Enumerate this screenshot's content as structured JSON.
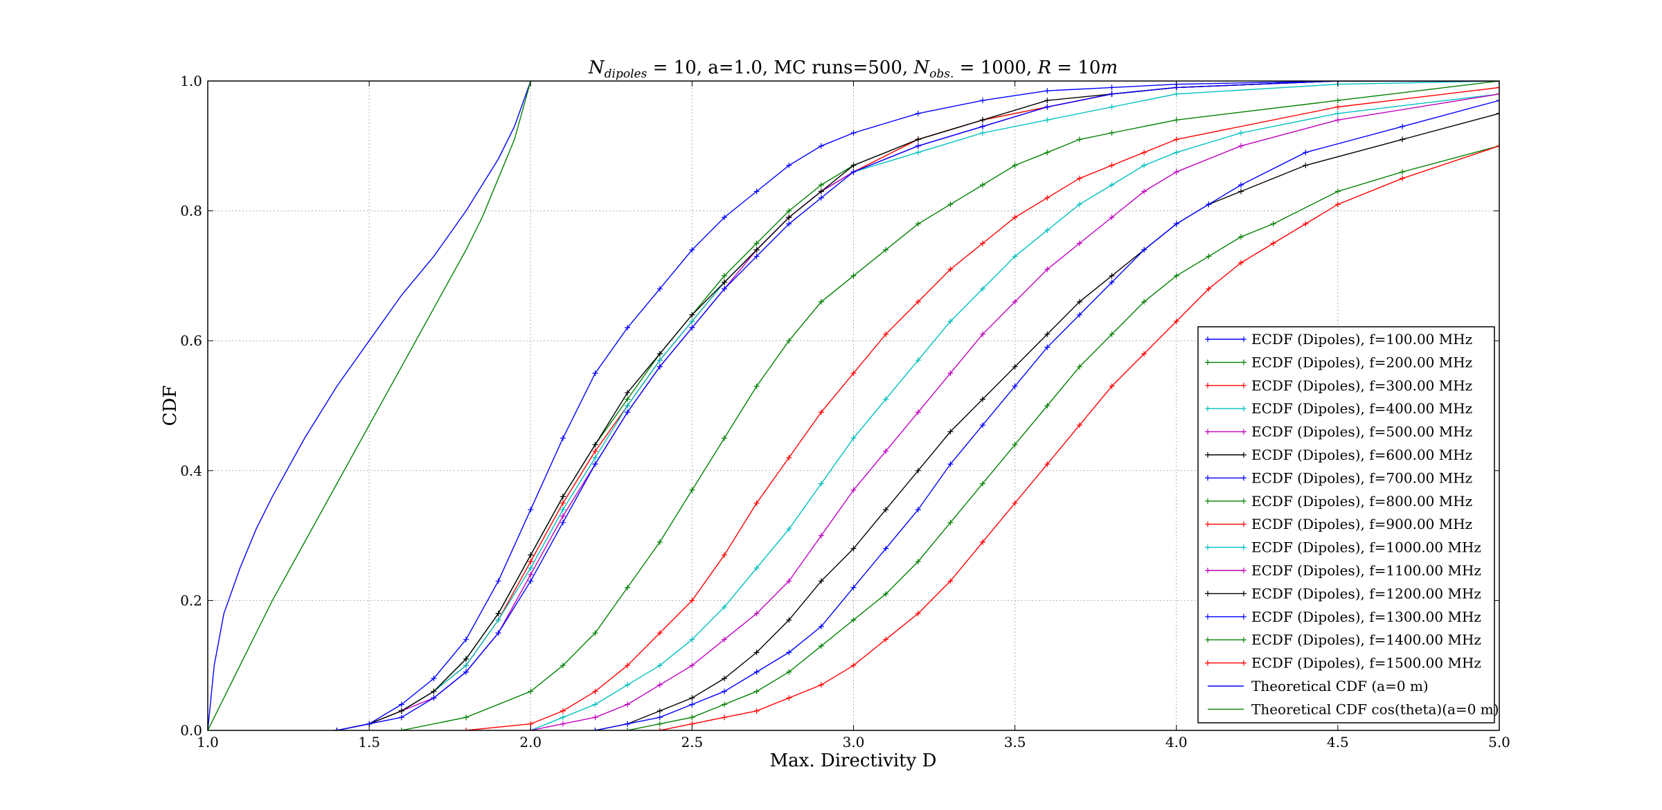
{
  "chart_data": {
    "type": "line",
    "title": "N_dipoles = 10, a=1.0, MC runs=500, N_obs. = 1000, R = 10m",
    "title_parts": {
      "n": "N",
      "n_sub": "dipoles",
      "eq1": " = 10, a=1.0, MC runs=500, ",
      "nobs": "N",
      "nobs_sub": "obs.",
      "eq2": " = 1000, ",
      "r": "R",
      "eq3": " = 10",
      "m": "m"
    },
    "xlabel": "Max. Directivity D",
    "ylabel": "CDF",
    "xlim": [
      1.0,
      5.0
    ],
    "ylim": [
      0.0,
      1.0
    ],
    "xticks": [
      "1.0",
      "1.5",
      "2.0",
      "2.5",
      "3.0",
      "3.5",
      "4.0",
      "4.5",
      "5.0"
    ],
    "yticks": [
      "0.0",
      "0.2",
      "0.4",
      "0.6",
      "0.8",
      "1.0"
    ],
    "grid": true,
    "legend_position": "lower-right",
    "series": [
      {
        "name": "ECDF (Dipoles), f=100.00 MHz",
        "color": "#0000ff",
        "marker": "+",
        "x": [
          1.4,
          1.5,
          1.6,
          1.7,
          1.8,
          1.9,
          2.0,
          2.1,
          2.2,
          2.3,
          2.4,
          2.5,
          2.6,
          2.7,
          2.8,
          2.9,
          3.0,
          3.2,
          3.4,
          3.6,
          3.8,
          4.0,
          4.5,
          5.0
        ],
        "y": [
          0.0,
          0.01,
          0.04,
          0.08,
          0.14,
          0.23,
          0.34,
          0.45,
          0.55,
          0.62,
          0.68,
          0.74,
          0.79,
          0.83,
          0.87,
          0.9,
          0.92,
          0.95,
          0.97,
          0.985,
          0.99,
          0.995,
          1.0,
          1.0
        ]
      },
      {
        "name": "ECDF (Dipoles), f=200.00 MHz",
        "color": "#008000",
        "marker": "+",
        "x": [
          1.4,
          1.5,
          1.6,
          1.7,
          1.8,
          1.9,
          2.0,
          2.1,
          2.2,
          2.3,
          2.4,
          2.5,
          2.6,
          2.7,
          2.8,
          2.9,
          3.0,
          3.2,
          3.4,
          3.6,
          3.8,
          4.0,
          4.5,
          5.0
        ],
        "y": [
          0.0,
          0.01,
          0.03,
          0.06,
          0.11,
          0.18,
          0.27,
          0.36,
          0.44,
          0.51,
          0.58,
          0.64,
          0.7,
          0.75,
          0.8,
          0.84,
          0.87,
          0.91,
          0.94,
          0.96,
          0.98,
          0.99,
          1.0,
          1.0
        ]
      },
      {
        "name": "ECDF (Dipoles), f=300.00 MHz",
        "color": "#ff0000",
        "marker": "+",
        "x": [
          1.4,
          1.5,
          1.6,
          1.7,
          1.8,
          1.9,
          2.0,
          2.1,
          2.2,
          2.3,
          2.4,
          2.5,
          2.6,
          2.7,
          2.8,
          2.9,
          3.0,
          3.2,
          3.4,
          3.6,
          3.8,
          4.0,
          4.5,
          5.0
        ],
        "y": [
          0.0,
          0.01,
          0.03,
          0.06,
          0.1,
          0.17,
          0.26,
          0.35,
          0.43,
          0.5,
          0.57,
          0.63,
          0.69,
          0.74,
          0.79,
          0.83,
          0.86,
          0.91,
          0.94,
          0.96,
          0.98,
          0.99,
          1.0,
          1.0
        ]
      },
      {
        "name": "ECDF (Dipoles), f=400.00 MHz",
        "color": "#00bfbf",
        "marker": "+",
        "x": [
          1.4,
          1.5,
          1.6,
          1.7,
          1.8,
          1.9,
          2.0,
          2.1,
          2.2,
          2.3,
          2.4,
          2.5,
          2.6,
          2.7,
          2.8,
          2.9,
          3.0,
          3.2,
          3.4,
          3.6,
          3.8,
          4.0,
          4.5,
          5.0
        ],
        "y": [
          0.0,
          0.01,
          0.03,
          0.06,
          0.1,
          0.17,
          0.25,
          0.34,
          0.42,
          0.5,
          0.57,
          0.63,
          0.69,
          0.74,
          0.79,
          0.83,
          0.86,
          0.89,
          0.92,
          0.94,
          0.96,
          0.98,
          0.995,
          1.0
        ]
      },
      {
        "name": "ECDF (Dipoles), f=500.00 MHz",
        "color": "#bf00bf",
        "marker": "+",
        "x": [
          1.4,
          1.5,
          1.6,
          1.7,
          1.8,
          1.9,
          2.0,
          2.1,
          2.2,
          2.3,
          2.4,
          2.5,
          2.6,
          2.7,
          2.8,
          2.9,
          3.0,
          3.2,
          3.4,
          3.6,
          3.8,
          4.0,
          4.5,
          5.0
        ],
        "y": [
          0.0,
          0.01,
          0.03,
          0.05,
          0.09,
          0.15,
          0.24,
          0.33,
          0.41,
          0.49,
          0.56,
          0.62,
          0.68,
          0.74,
          0.79,
          0.83,
          0.86,
          0.9,
          0.93,
          0.96,
          0.98,
          0.99,
          1.0,
          1.0
        ]
      },
      {
        "name": "ECDF (Dipoles), f=600.00 MHz",
        "color": "#000000",
        "marker": "+",
        "x": [
          1.4,
          1.5,
          1.6,
          1.7,
          1.8,
          1.9,
          2.0,
          2.1,
          2.2,
          2.3,
          2.4,
          2.5,
          2.6,
          2.7,
          2.8,
          2.9,
          3.0,
          3.2,
          3.4,
          3.6,
          3.8,
          4.0,
          4.5,
          5.0
        ],
        "y": [
          0.0,
          0.01,
          0.03,
          0.06,
          0.11,
          0.18,
          0.27,
          0.36,
          0.44,
          0.52,
          0.58,
          0.64,
          0.69,
          0.74,
          0.79,
          0.83,
          0.87,
          0.91,
          0.94,
          0.97,
          0.98,
          0.99,
          1.0,
          1.0
        ]
      },
      {
        "name": "ECDF (Dipoles), f=700.00 MHz",
        "color": "#0000ff",
        "marker": "+",
        "x": [
          1.4,
          1.5,
          1.6,
          1.7,
          1.8,
          1.9,
          2.0,
          2.1,
          2.2,
          2.3,
          2.4,
          2.5,
          2.6,
          2.7,
          2.8,
          2.9,
          3.0,
          3.2,
          3.4,
          3.6,
          3.8,
          4.0,
          4.5,
          5.0
        ],
        "y": [
          0.0,
          0.01,
          0.02,
          0.05,
          0.09,
          0.15,
          0.23,
          0.32,
          0.41,
          0.49,
          0.56,
          0.62,
          0.68,
          0.73,
          0.78,
          0.82,
          0.86,
          0.9,
          0.93,
          0.96,
          0.98,
          0.99,
          1.0,
          1.0
        ]
      },
      {
        "name": "ECDF (Dipoles), f=800.00 MHz",
        "color": "#008000",
        "marker": "+",
        "x": [
          1.6,
          1.8,
          2.0,
          2.1,
          2.2,
          2.3,
          2.4,
          2.5,
          2.6,
          2.7,
          2.8,
          2.9,
          3.0,
          3.1,
          3.2,
          3.3,
          3.4,
          3.5,
          3.6,
          3.7,
          3.8,
          4.0,
          4.5,
          5.0
        ],
        "y": [
          0.0,
          0.02,
          0.06,
          0.1,
          0.15,
          0.22,
          0.29,
          0.37,
          0.45,
          0.53,
          0.6,
          0.66,
          0.7,
          0.74,
          0.78,
          0.81,
          0.84,
          0.87,
          0.89,
          0.91,
          0.92,
          0.94,
          0.97,
          1.0
        ]
      },
      {
        "name": "ECDF (Dipoles), f=900.00 MHz",
        "color": "#ff0000",
        "marker": "+",
        "x": [
          1.8,
          2.0,
          2.1,
          2.2,
          2.3,
          2.4,
          2.5,
          2.6,
          2.7,
          2.8,
          2.9,
          3.0,
          3.1,
          3.2,
          3.3,
          3.4,
          3.5,
          3.6,
          3.7,
          3.8,
          3.9,
          4.0,
          4.5,
          5.0
        ],
        "y": [
          0.0,
          0.01,
          0.03,
          0.06,
          0.1,
          0.15,
          0.2,
          0.27,
          0.35,
          0.42,
          0.49,
          0.55,
          0.61,
          0.66,
          0.71,
          0.75,
          0.79,
          0.82,
          0.85,
          0.87,
          0.89,
          0.91,
          0.96,
          0.99
        ]
      },
      {
        "name": "ECDF (Dipoles), f=1000.00 MHz",
        "color": "#00bfbf",
        "marker": "+",
        "x": [
          2.0,
          2.1,
          2.2,
          2.3,
          2.4,
          2.5,
          2.6,
          2.7,
          2.8,
          2.9,
          3.0,
          3.1,
          3.2,
          3.3,
          3.4,
          3.5,
          3.6,
          3.7,
          3.8,
          3.9,
          4.0,
          4.2,
          4.5,
          5.0
        ],
        "y": [
          0.0,
          0.02,
          0.04,
          0.07,
          0.1,
          0.14,
          0.19,
          0.25,
          0.31,
          0.38,
          0.45,
          0.51,
          0.57,
          0.63,
          0.68,
          0.73,
          0.77,
          0.81,
          0.84,
          0.87,
          0.89,
          0.92,
          0.95,
          0.98
        ]
      },
      {
        "name": "ECDF (Dipoles), f=1100.00 MHz",
        "color": "#bf00bf",
        "marker": "+",
        "x": [
          2.0,
          2.1,
          2.2,
          2.3,
          2.4,
          2.5,
          2.6,
          2.7,
          2.8,
          2.9,
          3.0,
          3.1,
          3.2,
          3.3,
          3.4,
          3.5,
          3.6,
          3.7,
          3.8,
          3.9,
          4.0,
          4.2,
          4.5,
          5.0
        ],
        "y": [
          0.0,
          0.01,
          0.02,
          0.04,
          0.07,
          0.1,
          0.14,
          0.18,
          0.23,
          0.3,
          0.37,
          0.43,
          0.49,
          0.55,
          0.61,
          0.66,
          0.71,
          0.75,
          0.79,
          0.83,
          0.86,
          0.9,
          0.94,
          0.98
        ]
      },
      {
        "name": "ECDF (Dipoles), f=1200.00 MHz",
        "color": "#000000",
        "marker": "+",
        "x": [
          2.2,
          2.3,
          2.4,
          2.5,
          2.6,
          2.7,
          2.8,
          2.9,
          3.0,
          3.1,
          3.2,
          3.3,
          3.4,
          3.5,
          3.6,
          3.7,
          3.8,
          3.9,
          4.0,
          4.1,
          4.2,
          4.4,
          4.7,
          5.0
        ],
        "y": [
          0.0,
          0.01,
          0.03,
          0.05,
          0.08,
          0.12,
          0.17,
          0.23,
          0.28,
          0.34,
          0.4,
          0.46,
          0.51,
          0.56,
          0.61,
          0.66,
          0.7,
          0.74,
          0.78,
          0.81,
          0.83,
          0.87,
          0.91,
          0.95
        ]
      },
      {
        "name": "ECDF (Dipoles), f=1300.00 MHz",
        "color": "#0000ff",
        "marker": "+",
        "x": [
          2.2,
          2.3,
          2.4,
          2.5,
          2.6,
          2.7,
          2.8,
          2.9,
          3.0,
          3.1,
          3.2,
          3.3,
          3.4,
          3.5,
          3.6,
          3.7,
          3.8,
          3.9,
          4.0,
          4.1,
          4.2,
          4.4,
          4.7,
          5.0
        ],
        "y": [
          0.0,
          0.01,
          0.02,
          0.04,
          0.06,
          0.09,
          0.12,
          0.16,
          0.22,
          0.28,
          0.34,
          0.41,
          0.47,
          0.53,
          0.59,
          0.64,
          0.69,
          0.74,
          0.78,
          0.81,
          0.84,
          0.89,
          0.93,
          0.97
        ]
      },
      {
        "name": "ECDF (Dipoles), f=1400.00 MHz",
        "color": "#008000",
        "marker": "+",
        "x": [
          2.3,
          2.4,
          2.5,
          2.6,
          2.7,
          2.8,
          2.9,
          3.0,
          3.1,
          3.2,
          3.3,
          3.4,
          3.5,
          3.6,
          3.7,
          3.8,
          3.9,
          4.0,
          4.1,
          4.2,
          4.3,
          4.5,
          4.7,
          5.0
        ],
        "y": [
          0.0,
          0.01,
          0.02,
          0.04,
          0.06,
          0.09,
          0.13,
          0.17,
          0.21,
          0.26,
          0.32,
          0.38,
          0.44,
          0.5,
          0.56,
          0.61,
          0.66,
          0.7,
          0.73,
          0.76,
          0.78,
          0.83,
          0.86,
          0.9
        ]
      },
      {
        "name": "ECDF (Dipoles), f=1500.00 MHz",
        "color": "#ff0000",
        "marker": "+",
        "x": [
          2.4,
          2.5,
          2.6,
          2.7,
          2.8,
          2.9,
          3.0,
          3.1,
          3.2,
          3.3,
          3.4,
          3.5,
          3.6,
          3.7,
          3.8,
          3.9,
          4.0,
          4.1,
          4.2,
          4.3,
          4.4,
          4.5,
          4.7,
          5.0
        ],
        "y": [
          0.0,
          0.01,
          0.02,
          0.03,
          0.05,
          0.07,
          0.1,
          0.14,
          0.18,
          0.23,
          0.29,
          0.35,
          0.41,
          0.47,
          0.53,
          0.58,
          0.63,
          0.68,
          0.72,
          0.75,
          0.78,
          0.81,
          0.85,
          0.9
        ]
      },
      {
        "name": "Theoretical CDF (a=0 m)",
        "color": "#0000ff",
        "marker": "",
        "x": [
          1.0,
          1.02,
          1.05,
          1.1,
          1.15,
          1.2,
          1.3,
          1.4,
          1.5,
          1.6,
          1.7,
          1.8,
          1.85,
          1.9,
          1.95,
          2.0
        ],
        "y": [
          0.0,
          0.1,
          0.18,
          0.25,
          0.31,
          0.36,
          0.45,
          0.53,
          0.6,
          0.67,
          0.73,
          0.8,
          0.84,
          0.88,
          0.93,
          1.0
        ]
      },
      {
        "name": "Theoretical CDF cos(theta)(a=0 m)",
        "color": "#008000",
        "marker": "",
        "x": [
          1.0,
          1.1,
          1.2,
          1.3,
          1.4,
          1.5,
          1.6,
          1.7,
          1.8,
          1.85,
          1.9,
          1.95,
          2.0
        ],
        "y": [
          0.0,
          0.1,
          0.2,
          0.29,
          0.38,
          0.47,
          0.56,
          0.65,
          0.74,
          0.79,
          0.85,
          0.91,
          1.0
        ]
      }
    ]
  }
}
